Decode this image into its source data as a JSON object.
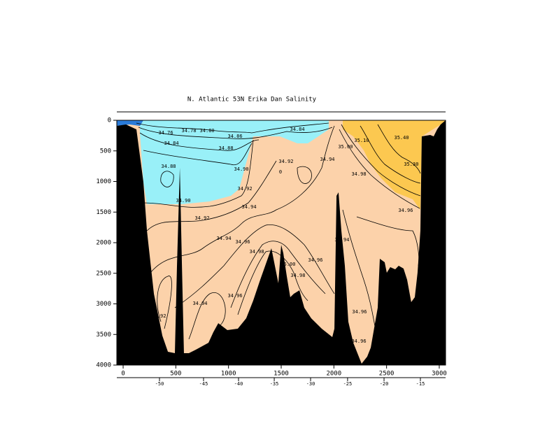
{
  "chart_data": {
    "type": "section",
    "title": "N. Atlantic 53N Erika Dan Salinity",
    "xlim": [
      -60,
      3060
    ],
    "xticks": [
      0,
      500,
      1000,
      1500,
      2000,
      2500,
      3000
    ],
    "ylim": [
      0,
      4000
    ],
    "yticks": [
      0,
      500,
      1000,
      1500,
      2000,
      2500,
      3000,
      3500,
      4000
    ],
    "lon_axis": {
      "ticks": [
        -50,
        -45,
        -40,
        -35,
        -30,
        -25,
        -20,
        -15
      ],
      "x": [
        345,
        763,
        1095,
        1434,
        1779,
        2130,
        2476,
        2821
      ]
    },
    "bathymetry": {
      "color": "#000000",
      "x": [
        -60,
        27,
        126,
        192,
        226,
        292,
        372,
        425,
        491,
        511,
        538,
        558,
        577,
        624,
        690,
        810,
        856,
        903,
        989,
        1088,
        1168,
        1234,
        1301,
        1367,
        1407,
        1440,
        1473,
        1500,
        1520,
        1553,
        1586,
        1619,
        1673,
        1719,
        1785,
        1885,
        1985,
        2005,
        2025,
        2044,
        2071,
        2104,
        2137,
        2184,
        2263,
        2316,
        2350,
        2416,
        2436,
        2482,
        2502,
        2535,
        2582,
        2615,
        2661,
        2695,
        2734,
        2768,
        2794,
        2821,
        2834,
        2914,
        2947,
        2980,
        3013,
        3060
      ],
      "depth": [
        91,
        69,
        149,
        1006,
        1806,
        2835,
        3520,
        3783,
        3806,
        2377,
        777,
        2377,
        3806,
        3806,
        3749,
        3635,
        3463,
        3315,
        3429,
        3406,
        3235,
        2949,
        2606,
        2286,
        2092,
        2377,
        2663,
        2035,
        2172,
        2549,
        2892,
        2835,
        2778,
        3063,
        3235,
        3406,
        3543,
        3406,
        1234,
        1177,
        1806,
        2377,
        3292,
        3635,
        3977,
        3863,
        3715,
        3063,
        2263,
        2320,
        2492,
        2400,
        2435,
        2377,
        2423,
        2606,
        2972,
        2892,
        2492,
        1806,
        263,
        240,
        263,
        149,
        69,
        0
      ]
    },
    "annotations": [
      {
        "text": "34.76",
        "x": 405,
        "y": 206
      },
      {
        "text": "34.78",
        "x": 624,
        "y": 171
      },
      {
        "text": "34.80",
        "x": 797,
        "y": 171
      },
      {
        "text": "34.84",
        "x": 458,
        "y": 377
      },
      {
        "text": "34.86",
        "x": 1062,
        "y": 263
      },
      {
        "text": "34.84",
        "x": 1653,
        "y": 149
      },
      {
        "text": "34.88",
        "x": 976,
        "y": 457
      },
      {
        "text": "34.88",
        "x": 431,
        "y": 754
      },
      {
        "text": "34.90",
        "x": 1122,
        "y": 800
      },
      {
        "text": "34.92",
        "x": 1546,
        "y": 674
      },
      {
        "text": "0",
        "x": 1493,
        "y": 846
      },
      {
        "text": "35.00",
        "x": 2110,
        "y": 434
      },
      {
        "text": "35.10",
        "x": 2263,
        "y": 331
      },
      {
        "text": "35.40",
        "x": 2642,
        "y": 286
      },
      {
        "text": "35.30",
        "x": 2734,
        "y": 720
      },
      {
        "text": "34.94",
        "x": 1938,
        "y": 640
      },
      {
        "text": "34.98",
        "x": 2237,
        "y": 880
      },
      {
        "text": "34.92",
        "x": 1155,
        "y": 1120
      },
      {
        "text": "34.90",
        "x": 571,
        "y": 1314
      },
      {
        "text": "34.94",
        "x": 1195,
        "y": 1417
      },
      {
        "text": "34.96",
        "x": 2681,
        "y": 1474
      },
      {
        "text": "34.92",
        "x": 750,
        "y": 1600
      },
      {
        "text": "34.94",
        "x": 956,
        "y": 1932
      },
      {
        "text": "34.96",
        "x": 1135,
        "y": 1989
      },
      {
        "text": "34.98",
        "x": 1268,
        "y": 2149
      },
      {
        "text": "35.00",
        "x": 1566,
        "y": 2355
      },
      {
        "text": "34.98",
        "x": 1659,
        "y": 2537
      },
      {
        "text": "34.96",
        "x": 1825,
        "y": 2286
      },
      {
        "text": "34.94",
        "x": 2077,
        "y": 1955
      },
      {
        "text": "34.96",
        "x": 1062,
        "y": 2869
      },
      {
        "text": "34.94",
        "x": 730,
        "y": 2995
      },
      {
        "text": "34.92",
        "x": 338,
        "y": 3200
      },
      {
        "text": "34.96",
        "x": 2243,
        "y": 3132
      },
      {
        "text": "34.96",
        "x": 2237,
        "y": 3612
      }
    ]
  }
}
